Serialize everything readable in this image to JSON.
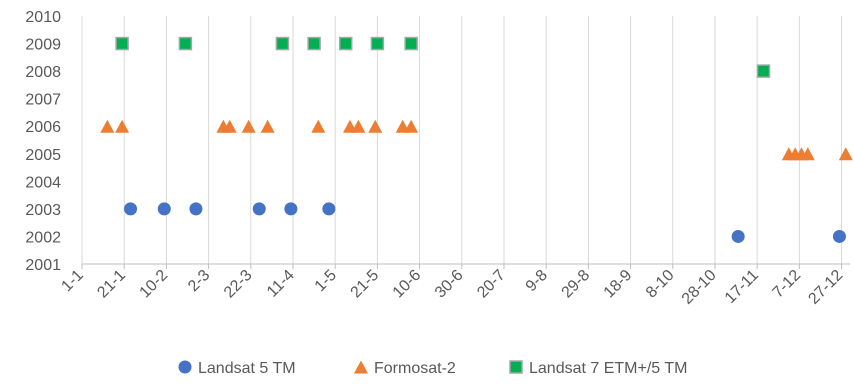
{
  "chart_data": {
    "type": "scatter",
    "title": "",
    "xlabel": "",
    "ylabel": "",
    "x_axis": {
      "kind": "day-of-year",
      "range": [
        "1-1",
        "31-12"
      ],
      "tick_labels": [
        "1-1",
        "21-1",
        "10-2",
        "2-3",
        "22-3",
        "11-4",
        "1-5",
        "21-5",
        "10-6",
        "30-6",
        "20-7",
        "9-8",
        "29-8",
        "18-9",
        "8-10",
        "28-10",
        "17-11",
        "7-12",
        "27-12"
      ]
    },
    "ylim": [
      2001,
      2010
    ],
    "y_ticks": [
      2001,
      2002,
      2003,
      2004,
      2005,
      2006,
      2007,
      2008,
      2009,
      2010
    ],
    "grid": "vertical",
    "legend_position": "bottom",
    "series": [
      {
        "name": "Landsat 5 TM",
        "color": "#4472C4",
        "marker": "circle",
        "points": [
          {
            "x": "24-1",
            "y": 2003
          },
          {
            "x": "9-2",
            "y": 2003
          },
          {
            "x": "24-2",
            "y": 2003
          },
          {
            "x": "26-3",
            "y": 2003
          },
          {
            "x": "10-4",
            "y": 2003
          },
          {
            "x": "28-4",
            "y": 2003
          },
          {
            "x": "8-11",
            "y": 2002
          },
          {
            "x": "26-12",
            "y": 2002
          }
        ]
      },
      {
        "name": "Formosat-2",
        "color": "#ED7D31",
        "marker": "triangle",
        "points": [
          {
            "x": "13-1",
            "y": 2006
          },
          {
            "x": "20-1",
            "y": 2006
          },
          {
            "x": "9-3",
            "y": 2006
          },
          {
            "x": "12-3",
            "y": 2006
          },
          {
            "x": "21-3",
            "y": 2006
          },
          {
            "x": "30-3",
            "y": 2006
          },
          {
            "x": "23-4",
            "y": 2006
          },
          {
            "x": "8-5",
            "y": 2006
          },
          {
            "x": "12-5",
            "y": 2006
          },
          {
            "x": "20-5",
            "y": 2006
          },
          {
            "x": "2-6",
            "y": 2006
          },
          {
            "x": "6-6",
            "y": 2006
          },
          {
            "x": "2-12",
            "y": 2005
          },
          {
            "x": "5-12",
            "y": 2005
          },
          {
            "x": "8-12",
            "y": 2005
          },
          {
            "x": "11-12",
            "y": 2005
          },
          {
            "x": "29-12",
            "y": 2005
          }
        ]
      },
      {
        "name": "Landsat 7 ETM+/5 TM",
        "color": "#00B050",
        "marker": "square",
        "points": [
          {
            "x": "20-1",
            "y": 2009
          },
          {
            "x": "19-2",
            "y": 2009
          },
          {
            "x": "6-4",
            "y": 2009
          },
          {
            "x": "21-4",
            "y": 2009
          },
          {
            "x": "6-5",
            "y": 2009
          },
          {
            "x": "21-5",
            "y": 2009
          },
          {
            "x": "6-6",
            "y": 2009
          },
          {
            "x": "20-11",
            "y": 2008
          }
        ]
      }
    ]
  }
}
